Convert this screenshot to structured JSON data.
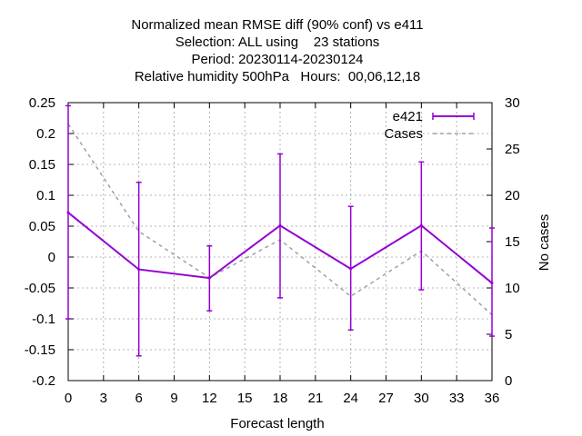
{
  "chart_data": {
    "type": "line",
    "title_lines": [
      "Normalized mean RMSE diff (90% conf) vs e411",
      "Selection: ALL using    23 stations",
      "Period: 20230114-20230124",
      "Relative humidity 500hPa   Hours:  00,06,12,18"
    ],
    "xlabel": "Forecast length",
    "ylabel": "",
    "y2label": "No cases",
    "x": [
      0,
      6,
      12,
      18,
      24,
      30,
      36
    ],
    "xlim": [
      0,
      36
    ],
    "ylim": [
      -0.2,
      0.25
    ],
    "y2lim": [
      0,
      30
    ],
    "xticks": [
      0,
      3,
      6,
      9,
      12,
      15,
      18,
      21,
      24,
      27,
      30,
      33,
      36
    ],
    "yticks": [
      -0.2,
      -0.15,
      -0.1,
      -0.05,
      0,
      0.05,
      0.1,
      0.15,
      0.2,
      0.25
    ],
    "ytick_labels": [
      "-0.2",
      "-0.15",
      "-0.1",
      "-0.05",
      "0",
      "0.05",
      "0.1",
      "0.15",
      "0.2",
      "0.25"
    ],
    "y2ticks": [
      0,
      5,
      10,
      15,
      20,
      25,
      30
    ],
    "grid": true,
    "legend_position": "top-right",
    "series": [
      {
        "name": "e421",
        "axis": "left",
        "color": "#9400d3",
        "values": [
          0.072,
          -0.02,
          -0.034,
          0.051,
          -0.019,
          0.051,
          -0.042
        ],
        "err_low": [
          -0.1,
          -0.16,
          -0.087,
          -0.066,
          -0.118,
          -0.053,
          -0.128
        ],
        "err_high": [
          0.245,
          0.121,
          0.018,
          0.167,
          0.082,
          0.154,
          0.047
        ]
      },
      {
        "name": "Cases",
        "axis": "right",
        "color": "#a0a0a0",
        "dashed": true,
        "values": [
          27.7,
          16.1,
          11.1,
          15.2,
          9.1,
          14.0,
          7.1
        ]
      }
    ]
  }
}
